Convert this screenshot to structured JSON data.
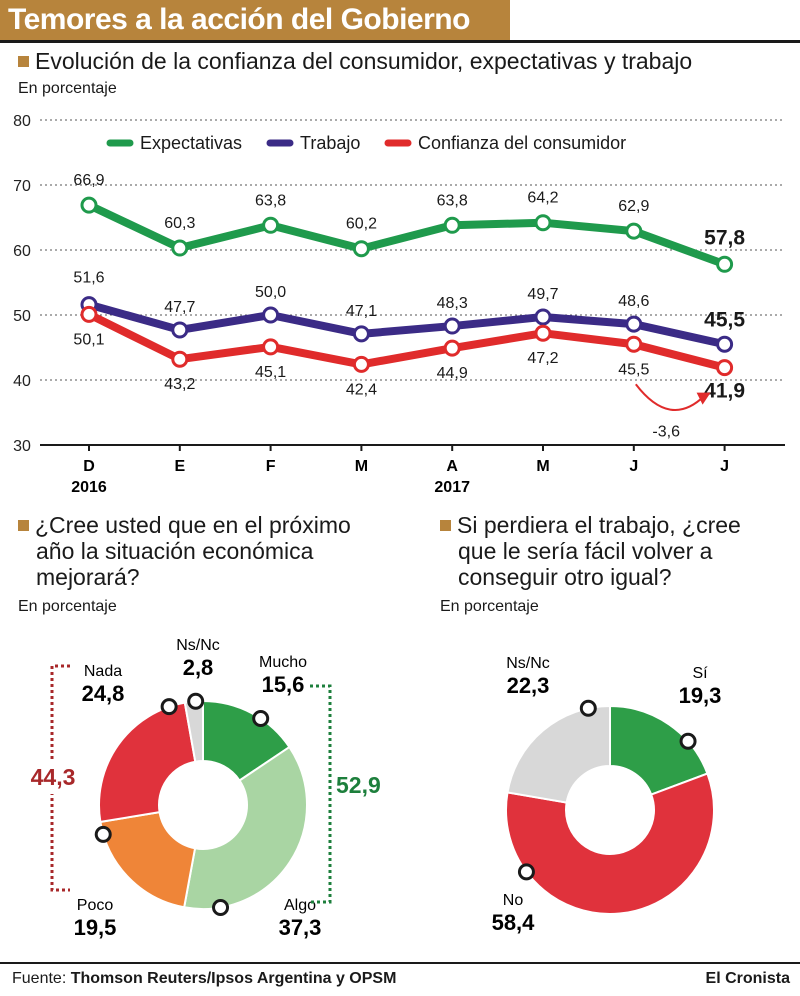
{
  "title": "Temores a la acción del Gobierno",
  "subtitle": "Evolución de la confianza del consumidor, expectativas y trabajo",
  "unit_label": "En porcentaje",
  "colors": {
    "accent": "#b7843c",
    "green": "#1f9a4c",
    "purple": "#3b2b86",
    "red": "#e02b2b",
    "red_dark": "#a8282a",
    "green_dark": "#1d7f3c"
  },
  "chart_data": [
    {
      "type": "line",
      "title": "Evolución de la confianza del consumidor, expectativas y trabajo",
      "ylabel": "En porcentaje",
      "ylim": [
        30,
        80
      ],
      "yticks": [
        "30",
        "40",
        "50",
        "60",
        "70",
        "80"
      ],
      "categories": [
        "D",
        "E",
        "F",
        "M",
        "A",
        "M",
        "J",
        "J"
      ],
      "year_labels": [
        {
          "index": 0,
          "text": "2016"
        },
        {
          "index": 4,
          "text": "2017"
        }
      ],
      "legend": [
        "Expectativas",
        "Trabajo",
        "Confianza del consumidor"
      ],
      "series": [
        {
          "name": "Expectativas",
          "color": "#1f9a4c",
          "values": [
            66.9,
            60.3,
            63.8,
            60.2,
            63.8,
            64.2,
            62.9,
            57.8
          ],
          "labels": [
            "66,9",
            "60,3",
            "63,8",
            "60,2",
            "63,8",
            "64,2",
            "62,9",
            "57,8"
          ]
        },
        {
          "name": "Trabajo",
          "color": "#3b2b86",
          "values": [
            51.6,
            47.7,
            50.0,
            47.1,
            48.3,
            49.7,
            48.6,
            45.5
          ],
          "labels": [
            "51,6",
            "47,7",
            "50,0",
            "47,1",
            "48,3",
            "49,7",
            "48,6",
            "45,5"
          ]
        },
        {
          "name": "Confianza del consumidor",
          "color": "#e02b2b",
          "values": [
            50.1,
            43.2,
            45.1,
            42.4,
            44.9,
            47.2,
            45.5,
            41.9
          ],
          "labels": [
            "50,1",
            "43,2",
            "45,1",
            "42,4",
            "44,9",
            "47,2",
            "45,5",
            "41,9"
          ]
        }
      ],
      "annotation": "-3,6"
    },
    {
      "type": "pie",
      "title": "¿Cree usted que en el próximo año la situación económica mejorará?",
      "unit": "En porcentaje",
      "slices": [
        {
          "label": "Mucho",
          "value": 15.6,
          "text": "15,6",
          "color": "#2e9e48"
        },
        {
          "label": "Algo",
          "value": 37.3,
          "text": "37,3",
          "color": "#a9d5a3"
        },
        {
          "label": "Poco",
          "value": 19.5,
          "text": "19,5",
          "color": "#ef8538"
        },
        {
          "label": "Nada",
          "value": 24.8,
          "text": "24,8",
          "color": "#e0323c"
        },
        {
          "label": "Ns/Nc",
          "value": 2.8,
          "text": "2,8",
          "color": "#d8d8d8"
        }
      ],
      "group_positive": "52,9",
      "group_negative": "44,3"
    },
    {
      "type": "pie",
      "title": "Si perdiera el trabajo, ¿cree que le sería fácil volver a conseguir otro igual?",
      "unit": "En porcentaje",
      "slices": [
        {
          "label": "Sí",
          "value": 19.3,
          "text": "19,3",
          "color": "#2e9e48"
        },
        {
          "label": "No",
          "value": 58.4,
          "text": "58,4",
          "color": "#e0323c"
        },
        {
          "label": "Ns/Nc",
          "value": 22.3,
          "text": "22,3",
          "color": "#d8d8d8"
        }
      ]
    }
  ],
  "questions": {
    "q1": [
      "¿Cree usted que en el próximo",
      "año la situación económica",
      "mejorará?"
    ],
    "q2": [
      "Si perdiera el trabajo, ¿cree",
      "que le sería fácil volver a",
      "conseguir otro igual?"
    ]
  },
  "footer": {
    "prefix": "Fuente:",
    "source": "Thomson Reuters/Ipsos Argentina y OPSM",
    "brand": "El Cronista"
  }
}
